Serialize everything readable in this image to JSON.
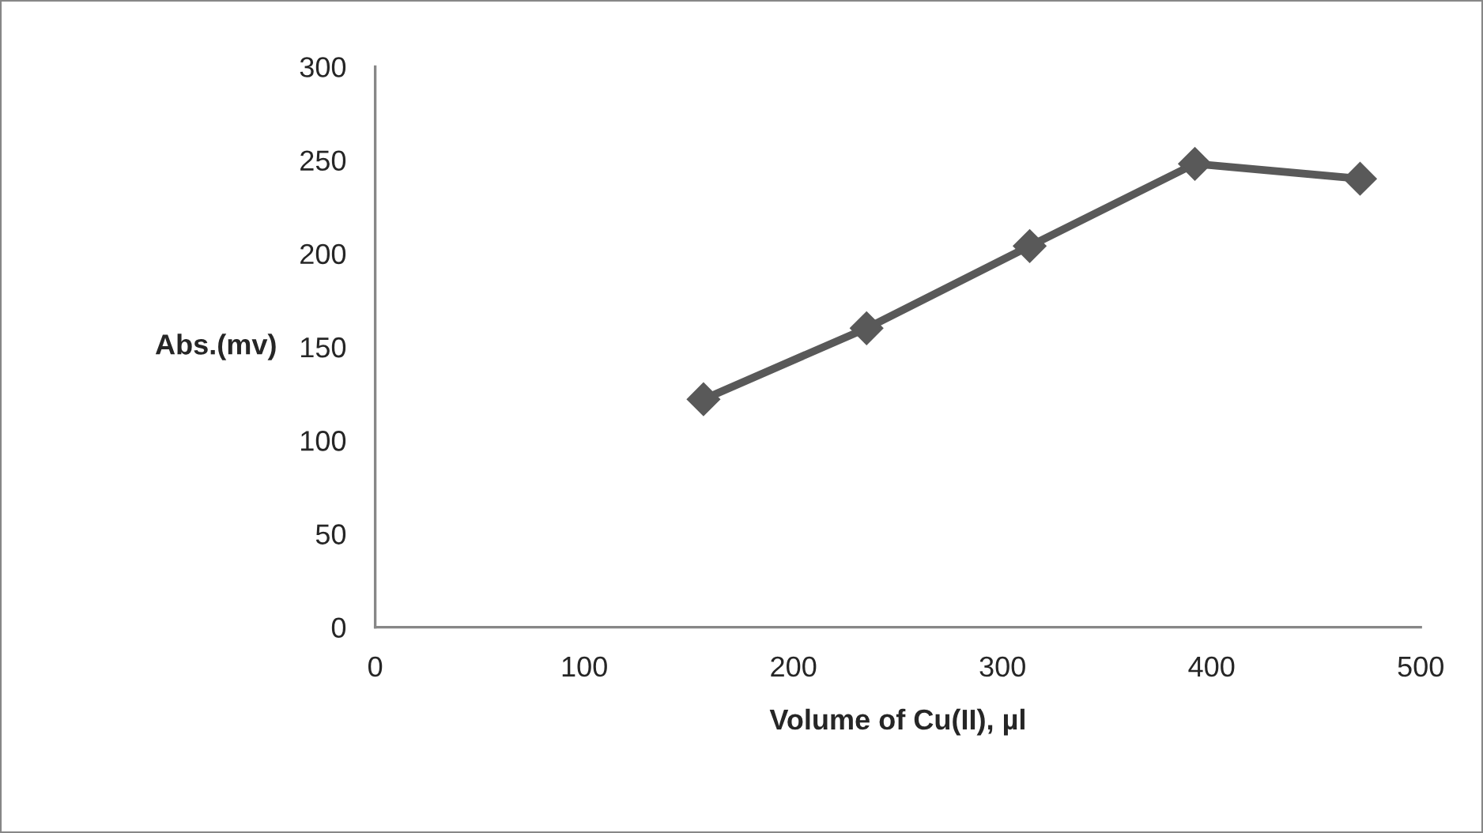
{
  "chart_data": {
    "type": "line",
    "xlabel": "Volume of Cu(II), µl",
    "ylabel": "Abs.(mv)",
    "x": [
      157,
      235,
      313,
      392,
      471
    ],
    "series": [
      {
        "color": "#595959",
        "values": [
          122,
          160,
          204,
          248,
          240
        ]
      }
    ],
    "xlim": [
      0,
      500
    ],
    "xticks": [
      0,
      100,
      200,
      300,
      400,
      500
    ],
    "ylim": [
      0,
      300
    ],
    "yticks": [
      0,
      50,
      100,
      150,
      200,
      250,
      300
    ],
    "grid": false,
    "marker": "diamond",
    "line_style": "solid"
  }
}
